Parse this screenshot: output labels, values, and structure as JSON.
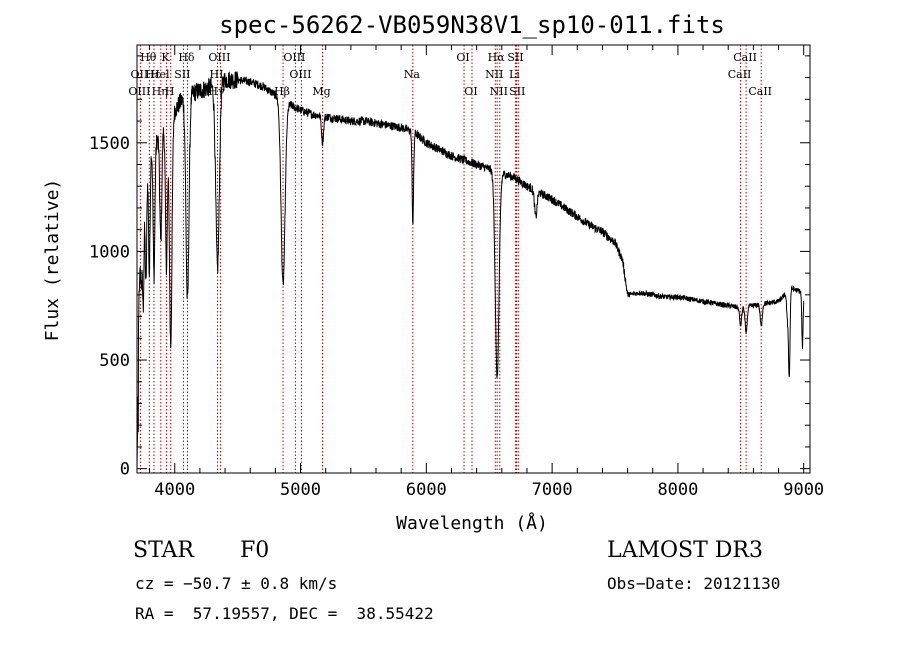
{
  "chart_data": {
    "type": "line",
    "title": "spec-56262-VB059N38V1_sp10-011.fits",
    "xlabel": "Wavelength (Å)",
    "ylabel": "Flux (relative)",
    "xlim": [
      3700,
      9050
    ],
    "ylim": [
      -20,
      1950
    ],
    "xticks": [
      4000,
      5000,
      6000,
      7000,
      8000,
      9000
    ],
    "yticks": [
      0,
      500,
      1000,
      1500
    ],
    "x_minor_step": 200,
    "y_minor_step": 100,
    "continuum": [
      [
        3700,
        0
      ],
      [
        3715,
        800
      ],
      [
        3740,
        1100
      ],
      [
        3760,
        1300
      ],
      [
        3800,
        1450
      ],
      [
        3850,
        1500
      ],
      [
        3900,
        1560
      ],
      [
        3950,
        1600
      ],
      [
        4000,
        1650
      ],
      [
        4050,
        1690
      ],
      [
        4100,
        1720
      ],
      [
        4150,
        1730
      ],
      [
        4200,
        1740
      ],
      [
        4300,
        1760
      ],
      [
        4400,
        1790
      ],
      [
        4500,
        1790
      ],
      [
        4600,
        1780
      ],
      [
        4700,
        1760
      ],
      [
        4800,
        1720
      ],
      [
        4900,
        1680
      ],
      [
        5000,
        1650
      ],
      [
        5100,
        1630
      ],
      [
        5200,
        1620
      ],
      [
        5300,
        1610
      ],
      [
        5400,
        1600
      ],
      [
        5500,
        1600
      ],
      [
        5600,
        1590
      ],
      [
        5700,
        1580
      ],
      [
        5800,
        1570
      ],
      [
        5900,
        1550
      ],
      [
        6000,
        1500
      ],
      [
        6100,
        1470
      ],
      [
        6200,
        1440
      ],
      [
        6300,
        1420
      ],
      [
        6400,
        1400
      ],
      [
        6500,
        1380
      ],
      [
        6600,
        1360
      ],
      [
        6700,
        1340
      ],
      [
        6800,
        1300
      ],
      [
        6900,
        1270
      ],
      [
        7000,
        1240
      ],
      [
        7100,
        1200
      ],
      [
        7200,
        1160
      ],
      [
        7300,
        1120
      ],
      [
        7400,
        1090
      ],
      [
        7500,
        1040
      ],
      [
        7560,
        960
      ],
      [
        7600,
        800
      ],
      [
        7700,
        810
      ],
      [
        7800,
        800
      ],
      [
        7900,
        790
      ],
      [
        8000,
        790
      ],
      [
        8100,
        780
      ],
      [
        8200,
        770
      ],
      [
        8300,
        760
      ],
      [
        8400,
        750
      ],
      [
        8500,
        740
      ],
      [
        8600,
        750
      ],
      [
        8700,
        760
      ],
      [
        8800,
        770
      ],
      [
        8850,
        800
      ],
      [
        8900,
        830
      ],
      [
        8950,
        820
      ],
      [
        9000,
        810
      ]
    ],
    "absorption": [
      [
        3735,
        180,
        5
      ],
      [
        3750,
        450,
        6
      ],
      [
        3771,
        500,
        6
      ],
      [
        3798,
        550,
        6
      ],
      [
        3835,
        600,
        7
      ],
      [
        3889,
        500,
        8
      ],
      [
        3934,
        650,
        8
      ],
      [
        3968,
        1050,
        10
      ],
      [
        4101,
        950,
        12
      ],
      [
        4340,
        850,
        14
      ],
      [
        4861,
        850,
        16
      ],
      [
        5175,
        120,
        8
      ],
      [
        5893,
        420,
        6
      ],
      [
        6563,
        950,
        15
      ],
      [
        6870,
        120,
        10
      ],
      [
        8498,
        80,
        8
      ],
      [
        8542,
        120,
        8
      ],
      [
        8662,
        100,
        8
      ],
      [
        8870,
        120,
        6
      ],
      [
        8885,
        400,
        6
      ],
      [
        8990,
        250,
        5
      ]
    ],
    "noise_amplitude": 40,
    "lines": [
      {
        "label": "Hθ",
        "x": 3798,
        "row": 0
      },
      {
        "label": "OII",
        "x": 3727,
        "row": 1
      },
      {
        "label": "OIII",
        "x": 3727,
        "row": 2
      },
      {
        "label": "Hε",
        "x": 3834,
        "row": 1
      },
      {
        "label": "Hη",
        "x": 3889,
        "row": 2
      },
      {
        "label": "K",
        "x": 3934,
        "row": 0
      },
      {
        "label": "Hel",
        "x": 3889,
        "row": 1
      },
      {
        "label": "H",
        "x": 3968,
        "row": 2
      },
      {
        "label": "Hδ",
        "x": 4101,
        "row": 0
      },
      {
        "label": "SII",
        "x": 4069,
        "row": 1
      },
      {
        "label": "OIII",
        "x": 4363,
        "row": 0
      },
      {
        "label": "HI",
        "x": 4340,
        "row": 1
      },
      {
        "label": "Hγ",
        "x": 4340,
        "row": 2
      },
      {
        "label": "OIII",
        "x": 4959,
        "row": 0
      },
      {
        "label": "OIII",
        "x": 5007,
        "row": 1
      },
      {
        "label": "Hβ",
        "x": 4861,
        "row": 2
      },
      {
        "label": "Mg",
        "x": 5175,
        "row": 2
      },
      {
        "label": "Na",
        "x": 5893,
        "row": 1
      },
      {
        "label": "OI",
        "x": 6300,
        "row": 0
      },
      {
        "label": "OI",
        "x": 6363,
        "row": 2
      },
      {
        "label": "Hα",
        "x": 6563,
        "row": 0
      },
      {
        "label": "NII",
        "x": 6548,
        "row": 1
      },
      {
        "label": "NII",
        "x": 6584,
        "row": 2
      },
      {
        "label": "SII",
        "x": 6717,
        "row": 0
      },
      {
        "label": "Li",
        "x": 6708,
        "row": 1
      },
      {
        "label": "SII",
        "x": 6731,
        "row": 2
      },
      {
        "label": "CaII",
        "x": 8542,
        "row": 0
      },
      {
        "label": "CaII",
        "x": 8498,
        "row": 1
      },
      {
        "label": "CaII",
        "x": 8662,
        "row": 2
      }
    ],
    "marker_lines": [
      3727,
      3798,
      3835,
      3889,
      3934,
      3968,
      4069,
      4101,
      4340,
      4363,
      4861,
      4959,
      5007,
      5175,
      5893,
      6300,
      6363,
      6548,
      6563,
      6584,
      6708,
      6717,
      6731,
      8498,
      8542,
      8662
    ],
    "line_color": "#000000",
    "marker_color": "#c00000"
  },
  "footer": {
    "object_class": "STAR",
    "subclass": "F0",
    "survey": "LAMOST DR3",
    "cz": "cz = −50.7 ± 0.8 km/s",
    "obs_date": "Obs−Date: 20121130",
    "coords": "RA =  57.19557, DEC =  38.55422"
  }
}
